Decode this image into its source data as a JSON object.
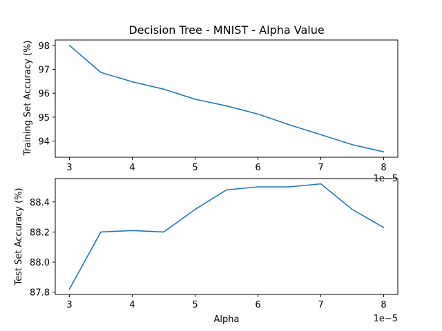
{
  "colors": {
    "line": "#1f77b4",
    "frame": "#000000",
    "background": "#ffffff"
  },
  "chart_data": [
    {
      "type": "line",
      "title": "Decision Tree - MNIST - Alpha Value",
      "xlabel": "",
      "ylabel": "Training Set Accuracy (%)",
      "x_scale_label": "1e−5",
      "x": [
        3,
        3.5,
        4,
        4.5,
        5,
        5.5,
        6,
        6.5,
        7,
        7.5,
        8
      ],
      "series": [
        {
          "name": "Training Set Accuracy",
          "values": [
            98.0,
            96.87,
            96.48,
            96.17,
            95.75,
            95.47,
            95.13,
            94.68,
            94.27,
            93.85,
            93.55
          ]
        }
      ],
      "xlim": [
        2.775,
        8.225
      ],
      "ylim": [
        93.325,
        98.225
      ],
      "xticks": [
        3,
        4,
        5,
        6,
        7,
        8
      ],
      "xtick_labels": [
        "3",
        "4",
        "5",
        "6",
        "7",
        "8"
      ],
      "yticks": [
        94,
        95,
        96,
        97,
        98
      ],
      "ytick_labels": [
        "94",
        "95",
        "96",
        "97",
        "98"
      ]
    },
    {
      "type": "line",
      "title": "",
      "xlabel": "Alpha",
      "ylabel": "Test Set Accuracy (%)",
      "x_scale_label": "1e−5",
      "x": [
        3,
        3.5,
        4,
        4.5,
        5,
        5.5,
        6,
        6.5,
        7,
        7.5,
        8
      ],
      "series": [
        {
          "name": "Test Set Accuracy",
          "values": [
            87.82,
            88.2,
            88.21,
            88.2,
            88.35,
            88.48,
            88.5,
            88.5,
            88.52,
            88.35,
            88.23
          ]
        }
      ],
      "xlim": [
        2.775,
        8.225
      ],
      "ylim": [
        87.785,
        88.555
      ],
      "xticks": [
        3,
        4,
        5,
        6,
        7,
        8
      ],
      "xtick_labels": [
        "3",
        "4",
        "5",
        "6",
        "7",
        "8"
      ],
      "yticks": [
        87.8,
        88.0,
        88.2,
        88.4
      ],
      "ytick_labels": [
        "87.8",
        "88.0",
        "88.2",
        "88.4"
      ]
    }
  ]
}
